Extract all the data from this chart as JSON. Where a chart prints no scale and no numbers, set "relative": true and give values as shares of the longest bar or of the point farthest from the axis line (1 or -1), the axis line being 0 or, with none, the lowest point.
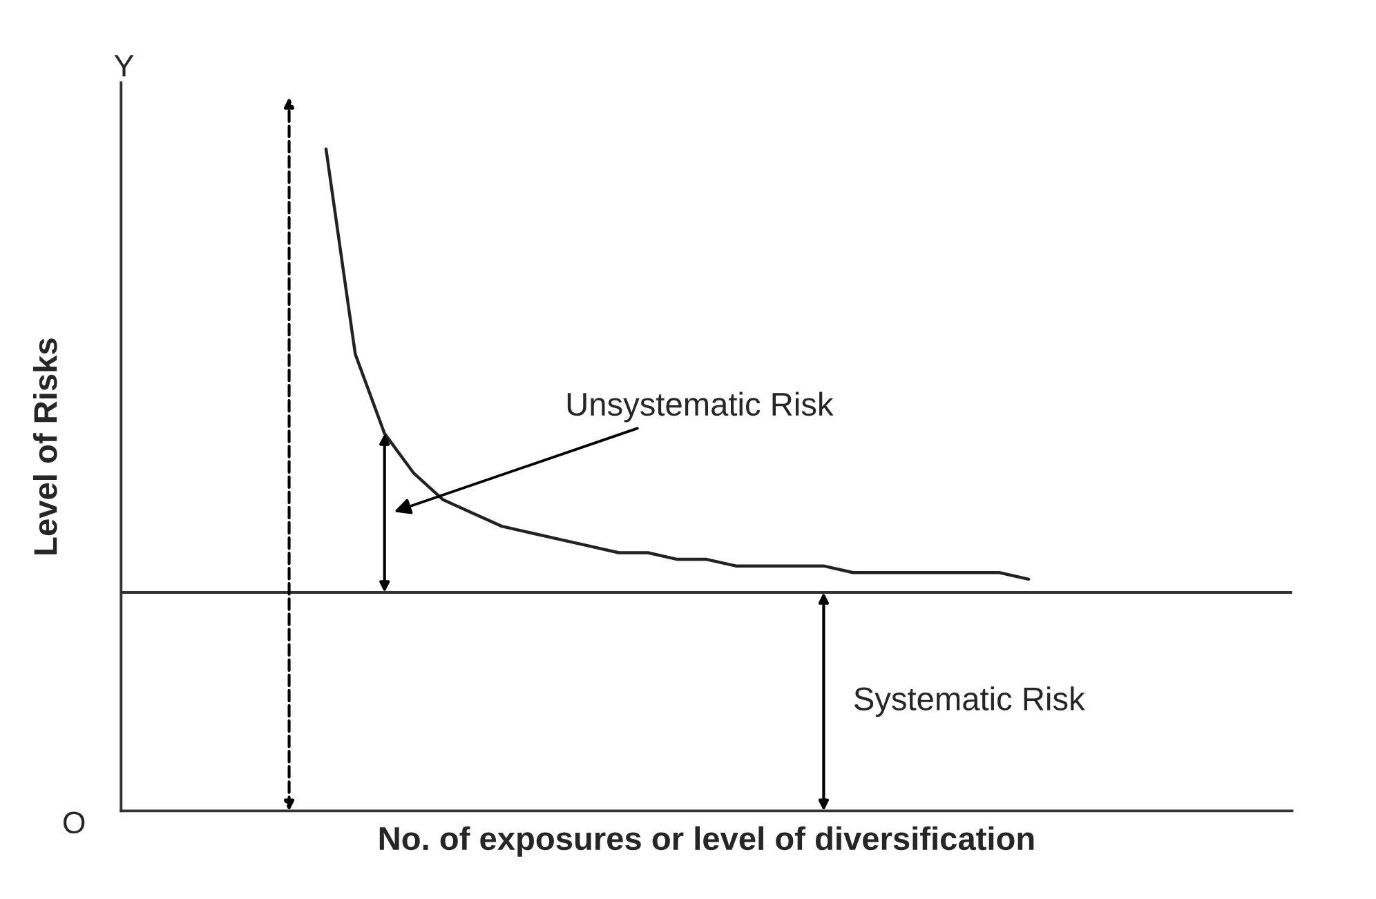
{
  "chart_data": {
    "type": "line",
    "relative": true,
    "xlabel": "No. of exposures or level of diversification",
    "ylabel": "Level of Risks",
    "categories": [
      null,
      null,
      null,
      null,
      null,
      null,
      null,
      null,
      null,
      null,
      null,
      null,
      null,
      null,
      null,
      null,
      null,
      null,
      null,
      null,
      null,
      null,
      null,
      null,
      null,
      null,
      null,
      null,
      null,
      null,
      null,
      null,
      null,
      null,
      null,
      null,
      null,
      null,
      null,
      null,
      null
    ],
    "series": [
      {
        "color": "#222222",
        "values": [
          null,
          null,
          null,
          null,
          null,
          null,
          null,
          1.0,
          0.69,
          0.57,
          0.51,
          0.47,
          0.45,
          0.43,
          0.42,
          0.41,
          0.4,
          0.39,
          0.39,
          0.38,
          0.38,
          0.37,
          0.37,
          0.37,
          0.37,
          0.36,
          0.36,
          0.36,
          0.36,
          0.36,
          0.36,
          0.35,
          null,
          null,
          null,
          null,
          null,
          null,
          null,
          null,
          null
        ]
      }
    ],
    "ref_lines": [
      {
        "axis": "y",
        "value": 0.33,
        "label": "Systematic Risk",
        "color": "#333333"
      }
    ],
    "annotations": [
      "Unsystematic Risk",
      "Y",
      "O"
    ],
    "marker": "none",
    "line_style": "solid"
  }
}
